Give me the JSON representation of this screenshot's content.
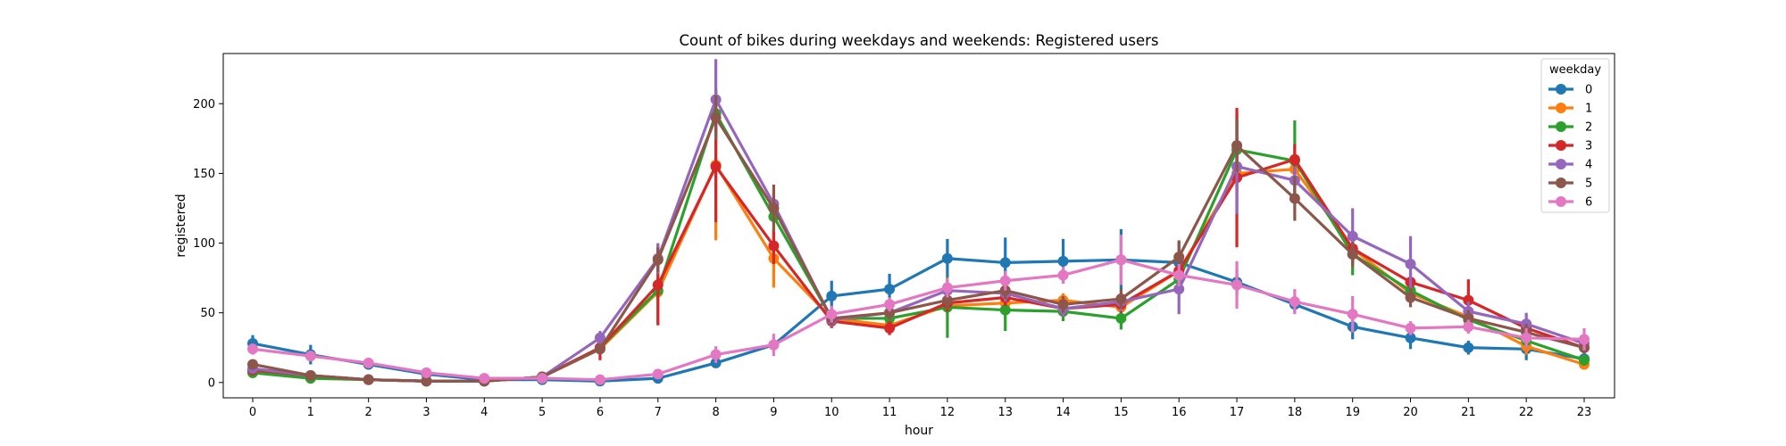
{
  "chart_data": {
    "type": "line",
    "title": "Count of bikes during weekdays and weekends: Registered users",
    "xlabel": "hour",
    "ylabel": "registered",
    "x": [
      0,
      1,
      2,
      3,
      4,
      5,
      6,
      7,
      8,
      9,
      10,
      11,
      12,
      13,
      14,
      15,
      16,
      17,
      18,
      19,
      20,
      21,
      22,
      23
    ],
    "ylim": [
      -11,
      236
    ],
    "yticks": [
      0,
      50,
      100,
      150,
      200
    ],
    "legend": {
      "title": "weekday",
      "placement": "top-right"
    },
    "error_bars": true,
    "series": [
      {
        "name": "0",
        "color": "#1f77b4",
        "values": [
          28,
          20,
          13,
          6,
          2,
          2,
          1,
          3,
          14,
          27,
          62,
          67,
          89,
          86,
          87,
          88,
          86,
          72,
          56,
          40,
          32,
          25,
          24,
          17
        ],
        "err": [
          6,
          7,
          3,
          2,
          1,
          1,
          1,
          1,
          3,
          3,
          11,
          11,
          14,
          18,
          16,
          22,
          15,
          9,
          6,
          9,
          8,
          5,
          8,
          4
        ]
      },
      {
        "name": "1",
        "color": "#ff7f0e",
        "values": [
          7,
          4,
          2,
          1,
          1,
          4,
          24,
          65,
          156,
          89,
          46,
          41,
          55,
          57,
          59,
          54,
          80,
          150,
          153,
          96,
          64,
          47,
          26,
          13
        ],
        "err": [
          2,
          1,
          1,
          1,
          1,
          1,
          3,
          23,
          54,
          21,
          5,
          5,
          6,
          6,
          5,
          6,
          8,
          14,
          12,
          9,
          7,
          6,
          6,
          3
        ]
      },
      {
        "name": "2",
        "color": "#2ca02c",
        "values": [
          7,
          3,
          2,
          1,
          1,
          4,
          25,
          66,
          193,
          119,
          46,
          46,
          54,
          52,
          51,
          46,
          74,
          167,
          159,
          92,
          66,
          45,
          30,
          16
        ],
        "err": [
          2,
          1,
          1,
          1,
          1,
          1,
          3,
          6,
          18,
          7,
          5,
          5,
          22,
          15,
          7,
          8,
          8,
          26,
          29,
          15,
          8,
          6,
          5,
          4
        ]
      },
      {
        "name": "3",
        "color": "#d62728",
        "values": [
          9,
          5,
          2,
          1,
          1,
          4,
          25,
          70,
          155,
          98,
          44,
          39,
          57,
          61,
          53,
          56,
          80,
          147,
          160,
          96,
          72,
          59,
          39,
          25
        ],
        "err": [
          2,
          1,
          1,
          1,
          1,
          1,
          9,
          29,
          40,
          13,
          5,
          5,
          6,
          6,
          6,
          6,
          8,
          50,
          11,
          9,
          7,
          15,
          5,
          4
        ]
      },
      {
        "name": "4",
        "color": "#9467bd",
        "values": [
          10,
          5,
          2,
          1,
          1,
          4,
          32,
          89,
          203,
          128,
          45,
          50,
          66,
          64,
          53,
          58,
          67,
          155,
          145,
          105,
          85,
          51,
          42,
          28
        ],
        "err": [
          2,
          1,
          1,
          1,
          1,
          1,
          5,
          11,
          29,
          8,
          5,
          5,
          6,
          6,
          6,
          7,
          18,
          34,
          10,
          20,
          20,
          7,
          8,
          5
        ]
      },
      {
        "name": "5",
        "color": "#8c564b",
        "values": [
          13,
          5,
          2,
          1,
          1,
          4,
          24,
          88,
          190,
          125,
          46,
          50,
          59,
          66,
          56,
          60,
          90,
          170,
          132,
          92,
          61,
          46,
          36,
          25
        ],
        "err": [
          2,
          1,
          1,
          1,
          1,
          1,
          3,
          9,
          16,
          17,
          5,
          5,
          6,
          6,
          6,
          7,
          12,
          19,
          16,
          9,
          7,
          6,
          6,
          4
        ]
      },
      {
        "name": "6",
        "color": "#e377c2",
        "values": [
          24,
          19,
          14,
          7,
          3,
          3,
          2,
          6,
          20,
          27,
          49,
          56,
          68,
          73,
          77,
          88,
          77,
          70,
          58,
          49,
          39,
          40,
          32,
          31
        ],
        "err": [
          4,
          3,
          3,
          2,
          1,
          1,
          1,
          2,
          6,
          8,
          6,
          5,
          7,
          7,
          6,
          18,
          8,
          17,
          9,
          13,
          5,
          5,
          7,
          8
        ]
      }
    ]
  }
}
